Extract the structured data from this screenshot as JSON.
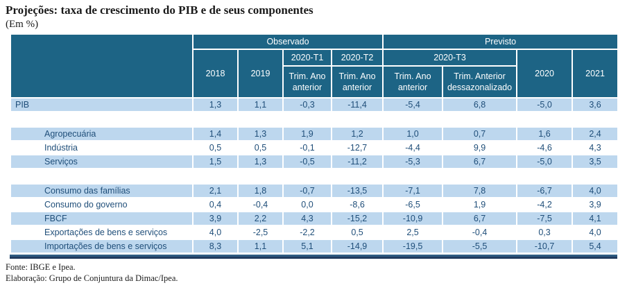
{
  "title": "Projeções: taxa de crescimento do PIB e de seus componentes",
  "subtitle": "(Em %)",
  "header": {
    "observado": "Observado",
    "previsto": "Previsto",
    "col_2018": "2018",
    "col_2019": "2019",
    "t1": "2020-T1",
    "t2": "2020-T2",
    "t3": "2020-T3",
    "trim_ano_anterior": "Trim. Ano anterior",
    "trim_anterior_dessaz": "Trim. Anterior dessazonalizado",
    "col_2020": "2020",
    "col_2021": "2021"
  },
  "rows": [
    {
      "label": "PIB",
      "indent": false,
      "shaded": true,
      "gap_after": true,
      "values": [
        "1,3",
        "1,1",
        "-0,3",
        "-11,4",
        "-5,4",
        "6,8",
        "-5,0",
        "3,6"
      ]
    },
    {
      "label": "Agropecuária",
      "indent": true,
      "shaded": true,
      "gap_after": false,
      "values": [
        "1,4",
        "1,3",
        "1,9",
        "1,2",
        "1,0",
        "0,7",
        "1,6",
        "2,4"
      ]
    },
    {
      "label": "Indústria",
      "indent": true,
      "shaded": false,
      "gap_after": false,
      "values": [
        "0,5",
        "0,5",
        "-0,1",
        "-12,7",
        "-4,4",
        "9,9",
        "-4,6",
        "4,3"
      ]
    },
    {
      "label": "Serviços",
      "indent": true,
      "shaded": true,
      "gap_after": true,
      "values": [
        "1,5",
        "1,3",
        "-0,5",
        "-11,2",
        "-5,3",
        "6,7",
        "-5,0",
        "3,5"
      ]
    },
    {
      "label": "Consumo das famílias",
      "indent": true,
      "shaded": true,
      "gap_after": false,
      "values": [
        "2,1",
        "1,8",
        "-0,7",
        "-13,5",
        "-7,1",
        "7,8",
        "-6,7",
        "4,0"
      ]
    },
    {
      "label": "Consumo do governo",
      "indent": true,
      "shaded": false,
      "gap_after": false,
      "values": [
        "0,4",
        "-0,4",
        "0,0",
        "-8,6",
        "-6,5",
        "1,9",
        "-4,2",
        "3,9"
      ]
    },
    {
      "label": "FBCF",
      "indent": true,
      "shaded": true,
      "gap_after": false,
      "values": [
        "3,9",
        "2,2",
        "4,3",
        "-15,2",
        "-10,9",
        "6,7",
        "-7,5",
        "4,1"
      ]
    },
    {
      "label": "Exportações de bens e serviços",
      "indent": true,
      "shaded": false,
      "gap_after": false,
      "values": [
        "4,0",
        "-2,5",
        "-2,2",
        "0,5",
        "2,5",
        "-0,4",
        "0,3",
        "4,0"
      ]
    },
    {
      "label": "Importações de bens e serviços",
      "indent": true,
      "shaded": true,
      "gap_after": false,
      "values": [
        "8,3",
        "1,1",
        "5,1",
        "-14,9",
        "-19,5",
        "-5,5",
        "-10,7",
        "5,4"
      ]
    }
  ],
  "footer": {
    "fonte": "Fonte: IBGE e Ipea.",
    "elaboracao": "Elaboração: Grupo de Conjuntura da Dimac/Ipea."
  },
  "colors": {
    "header_bg": "#1D6485",
    "header_text": "#FFFFFF",
    "shaded_row_bg": "#BDD7EE",
    "data_text": "#1F4E79",
    "rule_top": "#2F5C82",
    "rule_bottom": "#203A5E"
  },
  "chart_data": {
    "type": "table",
    "title": "Projeções: taxa de crescimento do PIB e de seus componentes",
    "unit": "Em %",
    "column_groups": [
      {
        "label": "Observado",
        "columns": [
          "2018",
          "2019",
          "2020-T1",
          "2020-T2"
        ]
      },
      {
        "label": "Previsto",
        "columns": [
          "2020-T3 (Trim. Ano anterior)",
          "2020-T3 (Trim. Anterior dessazonalizado)",
          "2020",
          "2021"
        ]
      }
    ],
    "columns": [
      "2018",
      "2019",
      "2020-T1 Trim. Ano anterior",
      "2020-T2 Trim. Ano anterior",
      "2020-T3 Trim. Ano anterior",
      "2020-T3 Trim. Anterior dessazonalizado",
      "2020",
      "2021"
    ],
    "rows": [
      {
        "label": "PIB",
        "values": [
          1.3,
          1.1,
          -0.3,
          -11.4,
          -5.4,
          6.8,
          -5.0,
          3.6
        ]
      },
      {
        "label": "Agropecuária",
        "values": [
          1.4,
          1.3,
          1.9,
          1.2,
          1.0,
          0.7,
          1.6,
          2.4
        ]
      },
      {
        "label": "Indústria",
        "values": [
          0.5,
          0.5,
          -0.1,
          -12.7,
          -4.4,
          9.9,
          -4.6,
          4.3
        ]
      },
      {
        "label": "Serviços",
        "values": [
          1.5,
          1.3,
          -0.5,
          -11.2,
          -5.3,
          6.7,
          -5.0,
          3.5
        ]
      },
      {
        "label": "Consumo das famílias",
        "values": [
          2.1,
          1.8,
          -0.7,
          -13.5,
          -7.1,
          7.8,
          -6.7,
          4.0
        ]
      },
      {
        "label": "Consumo do governo",
        "values": [
          0.4,
          -0.4,
          0.0,
          -8.6,
          -6.5,
          1.9,
          -4.2,
          3.9
        ]
      },
      {
        "label": "FBCF",
        "values": [
          3.9,
          2.2,
          4.3,
          -15.2,
          -10.9,
          6.7,
          -7.5,
          4.1
        ]
      },
      {
        "label": "Exportações de bens e serviços",
        "values": [
          4.0,
          -2.5,
          -2.2,
          0.5,
          2.5,
          -0.4,
          0.3,
          4.0
        ]
      },
      {
        "label": "Importações de bens e serviços",
        "values": [
          8.3,
          1.1,
          5.1,
          -14.9,
          -19.5,
          -5.5,
          -10.7,
          5.4
        ]
      }
    ],
    "source": "Fonte: IBGE e Ipea. Elaboração: Grupo de Conjuntura da Dimac/Ipea."
  }
}
